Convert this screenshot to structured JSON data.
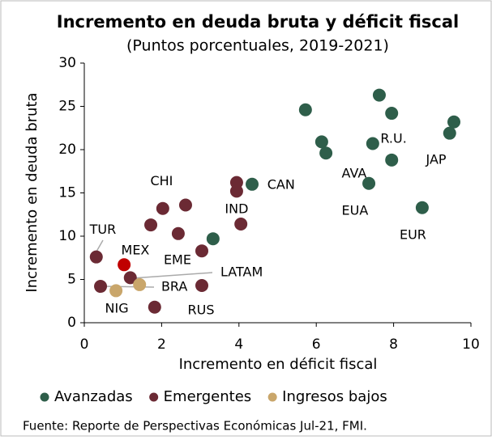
{
  "chart_data": {
    "type": "scatter",
    "title": "Incremento en deuda bruta y déficit fiscal",
    "subtitle": "(Puntos porcentuales, 2019-2021)",
    "x_label": "Incremento en déficit fiscal",
    "y_label": "Incremento en deuda bruta",
    "source": "Fuente:  Reporte de Perspectivas Económicas Jul-21, FMI.",
    "xlim": [
      0,
      10
    ],
    "xticks": [
      0,
      2,
      4,
      6,
      8,
      10
    ],
    "ylim": [
      0,
      30
    ],
    "yticks": [
      0,
      5,
      10,
      15,
      20,
      25,
      30
    ],
    "legend": "bottom",
    "series": [
      {
        "name": "Avanzadas",
        "color": "#2e5e4a",
        "x": [
          5.72,
          7.63,
          7.95,
          9.56,
          9.45,
          6.14,
          6.25,
          7.46,
          7.95,
          7.36,
          8.74,
          4.34,
          3.33
        ],
        "values": [
          24.6,
          26.3,
          24.2,
          23.2,
          21.9,
          20.9,
          19.6,
          20.7,
          18.8,
          16.1,
          13.3,
          16.0,
          9.7
        ]
      },
      {
        "name": "Emergentes",
        "color": "#6b2a34",
        "highlight": {
          "index": 13,
          "color": "#c00000"
        },
        "x": [
          3.94,
          3.94,
          4.05,
          2.62,
          2.03,
          1.72,
          2.43,
          3.04,
          0.31,
          1.19,
          0.42,
          3.04,
          1.82,
          1.03
        ],
        "values": [
          16.2,
          15.2,
          11.4,
          13.6,
          13.2,
          11.3,
          10.3,
          8.3,
          7.6,
          5.2,
          4.2,
          4.3,
          1.8,
          6.7
        ]
      },
      {
        "name": "Ingresos bajos",
        "color": "#c9a66b",
        "x": [
          0.82,
          1.43
        ],
        "values": [
          3.7,
          4.4
        ]
      }
    ],
    "annotations": [
      {
        "text": "CHI",
        "x": 2.0,
        "y": 16.3
      },
      {
        "text": "AVA",
        "x": 6.98,
        "y": 17.2
      },
      {
        "text": "R.U.",
        "x": 8.0,
        "y": 21.2
      },
      {
        "text": "JAP",
        "x": 9.1,
        "y": 18.8
      },
      {
        "text": "EUA",
        "x": 7.0,
        "y": 12.9
      },
      {
        "text": "EUR",
        "x": 8.5,
        "y": 10.1
      },
      {
        "text": "CAN",
        "x": 5.09,
        "y": 15.9
      },
      {
        "text": "IND",
        "x": 3.94,
        "y": 13.1
      },
      {
        "text": "TUR",
        "x": 0.48,
        "y": 10.7
      },
      {
        "text": "MEX",
        "x": 1.32,
        "y": 8.3
      },
      {
        "text": "EME",
        "x": 2.41,
        "y": 7.2
      },
      {
        "text": "LATAM",
        "x": 4.07,
        "y": 5.8
      },
      {
        "text": "BRA",
        "x": 2.33,
        "y": 4.1
      },
      {
        "text": "NIG",
        "x": 0.84,
        "y": 1.6
      },
      {
        "text": "RUS",
        "x": 3.02,
        "y": 1.4
      }
    ]
  }
}
